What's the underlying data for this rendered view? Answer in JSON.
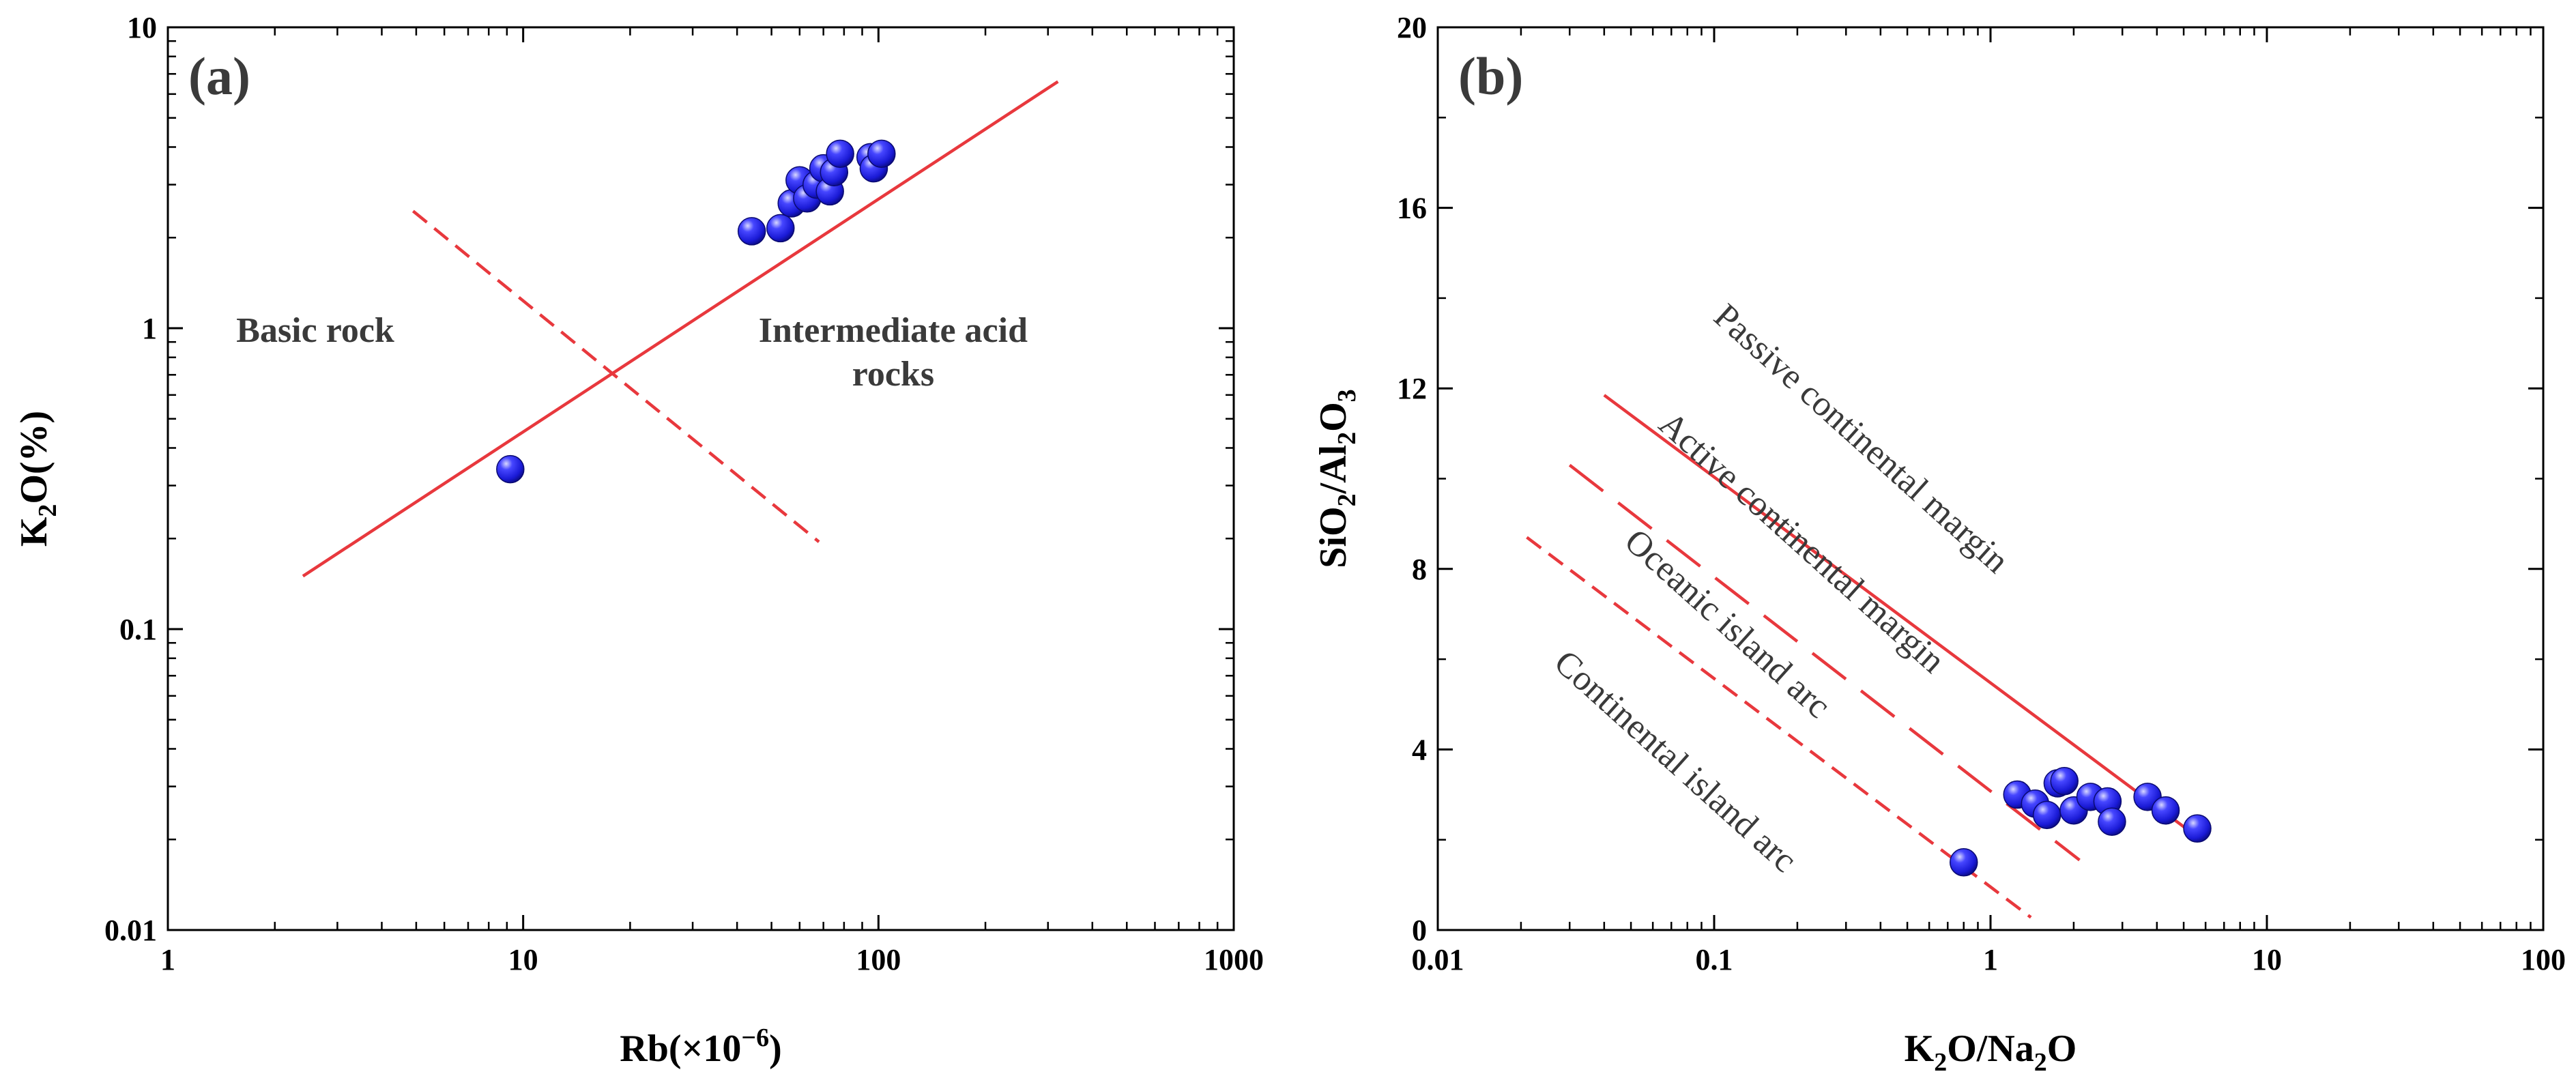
{
  "colors": {
    "axis": "#000000",
    "line": "#e8383d",
    "point_fill": "#1a1ad6",
    "point_highlight": "#b8b8ff",
    "label": "#3a3a3a"
  },
  "chart_data": [
    {
      "type": "scatter",
      "panel_label": "(a)",
      "xscale": "log",
      "yscale": "log",
      "xlim": [
        1,
        1000
      ],
      "ylim": [
        0.01,
        10
      ],
      "xlabel": {
        "base": "Rb(×10",
        "sup": "−6",
        "end": ")"
      },
      "ylabel": {
        "k": "K",
        "sub": "2",
        "rest": "O(%)"
      },
      "xticks": [
        {
          "v": 1,
          "label": "1"
        },
        {
          "v": 10,
          "label": "10"
        },
        {
          "v": 100,
          "label": "100"
        },
        {
          "v": 1000,
          "label": "1000"
        }
      ],
      "yticks": [
        {
          "v": 0.01,
          "label": "0.01"
        },
        {
          "v": 0.1,
          "label": "0.1"
        },
        {
          "v": 1,
          "label": "1"
        },
        {
          "v": 10,
          "label": "10"
        }
      ],
      "points": [
        {
          "x": 9.2,
          "y": 0.34
        },
        {
          "x": 44,
          "y": 2.1
        },
        {
          "x": 53,
          "y": 2.15
        },
        {
          "x": 57,
          "y": 2.6
        },
        {
          "x": 60,
          "y": 3.1
        },
        {
          "x": 63,
          "y": 2.7
        },
        {
          "x": 67,
          "y": 3.0
        },
        {
          "x": 70,
          "y": 3.4
        },
        {
          "x": 73,
          "y": 2.85
        },
        {
          "x": 75,
          "y": 3.3
        },
        {
          "x": 78,
          "y": 3.8
        },
        {
          "x": 95,
          "y": 3.7
        },
        {
          "x": 97,
          "y": 3.4
        },
        {
          "x": 102,
          "y": 3.8
        }
      ],
      "lines": [
        {
          "name": "boundary-solid",
          "style": "solid",
          "points": [
            [
              2.4,
              0.15
            ],
            [
              320,
              6.6
            ]
          ]
        },
        {
          "name": "boundary-dashed",
          "style": "dashed",
          "points": [
            [
              4.9,
              2.45
            ],
            [
              68,
              0.195
            ]
          ]
        }
      ],
      "annotations": [
        {
          "name": "region-basic-rock",
          "lines": [
            "Basic rock"
          ],
          "x": 2.6,
          "y": 0.9,
          "anchor": "middle"
        },
        {
          "name": "region-intermediate-acid",
          "lines": [
            "Intermediate acid",
            "rocks"
          ],
          "x": 110,
          "y": 0.9,
          "anchor": "middle"
        }
      ]
    },
    {
      "type": "scatter",
      "panel_label": "(b)",
      "xscale": "log",
      "yscale": "linear",
      "xlim": [
        0.01,
        100
      ],
      "ylim": [
        0,
        20
      ],
      "xlabel": {
        "k": "K",
        "sub1": "2",
        "mid": "O/Na",
        "sub2": "2",
        "end": "O"
      },
      "ylabel": {
        "a": "SiO",
        "sub1": "2",
        "b": "/Al",
        "sub2": "2",
        "c": "O",
        "sub3": "3"
      },
      "xticks": [
        {
          "v": 0.01,
          "label": "0.01"
        },
        {
          "v": 0.1,
          "label": "0.1"
        },
        {
          "v": 1,
          "label": "1"
        },
        {
          "v": 10,
          "label": "10"
        },
        {
          "v": 100,
          "label": "100"
        }
      ],
      "yticks": [
        {
          "v": 0,
          "label": "0"
        },
        {
          "v": 4,
          "label": "4"
        },
        {
          "v": 8,
          "label": "8"
        },
        {
          "v": 12,
          "label": "12"
        },
        {
          "v": 16,
          "label": "16"
        },
        {
          "v": 20,
          "label": "20"
        }
      ],
      "points": [
        {
          "x": 0.8,
          "y": 1.5
        },
        {
          "x": 1.25,
          "y": 3.0
        },
        {
          "x": 1.45,
          "y": 2.8
        },
        {
          "x": 1.6,
          "y": 2.55
        },
        {
          "x": 1.75,
          "y": 3.25
        },
        {
          "x": 1.85,
          "y": 3.3
        },
        {
          "x": 2.0,
          "y": 2.65
        },
        {
          "x": 2.3,
          "y": 2.95
        },
        {
          "x": 2.65,
          "y": 2.85
        },
        {
          "x": 2.75,
          "y": 2.4
        },
        {
          "x": 3.7,
          "y": 2.95
        },
        {
          "x": 4.3,
          "y": 2.65
        },
        {
          "x": 5.6,
          "y": 2.25
        }
      ],
      "lines": [
        {
          "name": "passive-margin-line",
          "style": "solid",
          "points": [
            [
              0.04,
              11.85
            ],
            [
              5.5,
              2.1
            ]
          ]
        },
        {
          "name": "active-margin-line",
          "style": "longdash",
          "points": [
            [
              0.03,
              10.3
            ],
            [
              2.1,
              1.55
            ]
          ]
        },
        {
          "name": "oceanic-arc-line",
          "style": "dashed",
          "points": [
            [
              0.021,
              8.7
            ],
            [
              1.4,
              0.28
            ]
          ]
        }
      ],
      "annotations": [
        {
          "name": "label-passive-margin",
          "lines": [
            "Passive continental margin"
          ],
          "x": 0.32,
          "y": 10.7,
          "anchor": "middle",
          "rotate": 42
        },
        {
          "name": "label-active-margin",
          "lines": [
            "Active continental margin"
          ],
          "x": 0.195,
          "y": 8.4,
          "anchor": "middle",
          "rotate": 42
        },
        {
          "name": "label-oceanic-arc",
          "lines": [
            "Oceanic island arc"
          ],
          "x": 0.105,
          "y": 6.6,
          "anchor": "middle",
          "rotate": 42
        },
        {
          "name": "label-continental-arc",
          "lines": [
            "Continental island arc"
          ],
          "x": 0.068,
          "y": 3.55,
          "anchor": "middle",
          "rotate": 42
        }
      ]
    }
  ]
}
